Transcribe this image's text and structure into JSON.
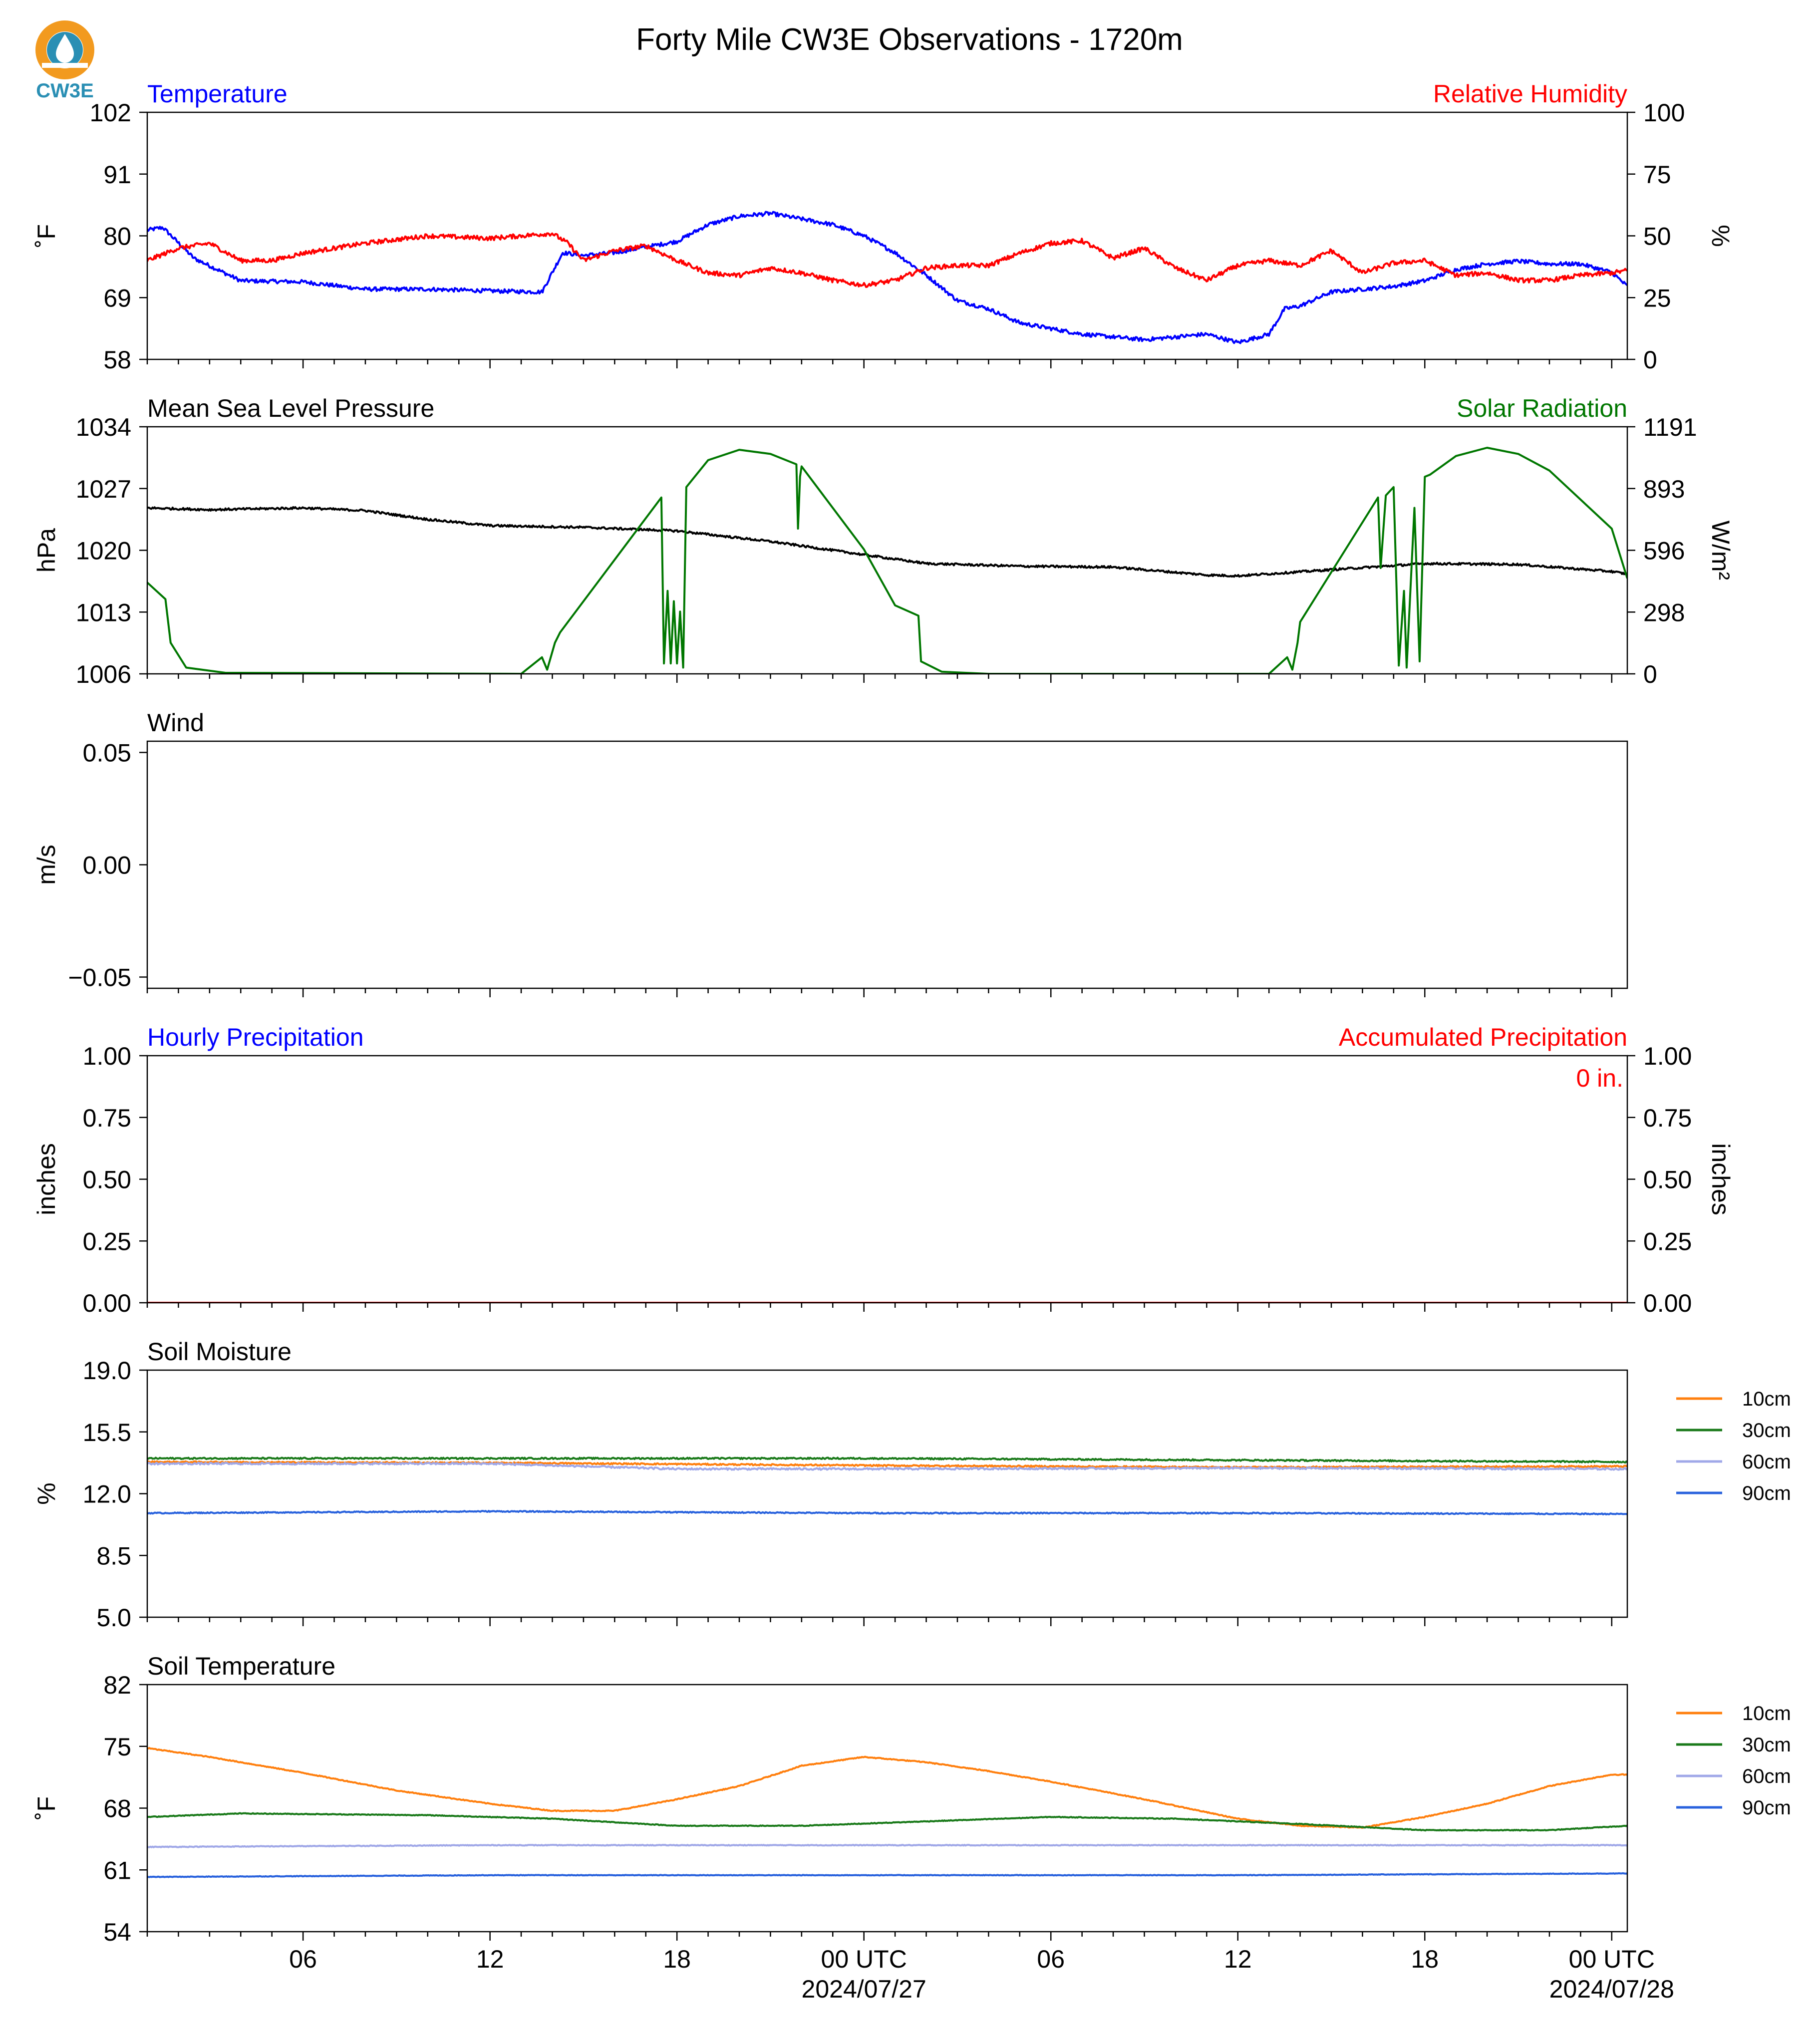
{
  "title": "Forty Mile CW3E Observations - 1720m",
  "logo": {
    "text": "CW3E",
    "color": "#2a8fb4",
    "ring_color": "#f29a1f"
  },
  "time_axis": {
    "x_range": [
      "2024-07-26T01:00",
      "2024-07-28T00:30"
    ],
    "tick_labels": [
      {
        "x": "2024-07-26T06:00",
        "lines": [
          "06"
        ]
      },
      {
        "x": "2024-07-26T12:00",
        "lines": [
          "12"
        ]
      },
      {
        "x": "2024-07-26T18:00",
        "lines": [
          "18"
        ]
      },
      {
        "x": "2024-07-27T00:00",
        "lines": [
          "00 UTC",
          "2024/07/27"
        ]
      },
      {
        "x": "2024-07-27T06:00",
        "lines": [
          "06"
        ]
      },
      {
        "x": "2024-07-27T12:00",
        "lines": [
          "12"
        ]
      },
      {
        "x": "2024-07-27T18:00",
        "lines": [
          "18"
        ]
      },
      {
        "x": "2024-07-28T00:00",
        "lines": [
          "00 UTC",
          "2024/07/28"
        ]
      }
    ]
  },
  "chart_data": [
    {
      "type": "line",
      "left_title": "Temperature",
      "left_title_color": "#0000ff",
      "right_title": "Relative Humidity",
      "right_title_color": "#ff0000",
      "ylabel": "˚F",
      "ylim": [
        58,
        102
      ],
      "yticks": [
        "58",
        "69",
        "80",
        "91",
        "102"
      ],
      "y2label": "%",
      "y2lim": [
        0,
        100
      ],
      "y2ticks": [
        "0",
        "25",
        "50",
        "75",
        "100"
      ],
      "series": [
        {
          "name": "Temperature",
          "axis": "left",
          "color": "#0000ff",
          "noise": 0.35,
          "x": [
            "2024-07-26T01:00",
            "2024-07-26T01:30",
            "2024-07-26T02:30",
            "2024-07-26T04:00",
            "2024-07-26T06:00",
            "2024-07-26T08:00",
            "2024-07-26T10:00",
            "2024-07-26T12:00",
            "2024-07-26T13:40",
            "2024-07-26T14:20",
            "2024-07-26T15:00",
            "2024-07-26T16:00",
            "2024-07-26T17:00",
            "2024-07-26T18:00",
            "2024-07-26T19:00",
            "2024-07-26T20:00",
            "2024-07-26T21:00",
            "2024-07-26T22:00",
            "2024-07-26T23:00",
            "2024-07-27T00:00",
            "2024-07-27T01:00",
            "2024-07-27T02:00",
            "2024-07-27T03:00",
            "2024-07-27T04:00",
            "2024-07-27T05:00",
            "2024-07-27T06:00",
            "2024-07-27T07:00",
            "2024-07-27T08:00",
            "2024-07-27T09:00",
            "2024-07-27T10:00",
            "2024-07-27T11:00",
            "2024-07-27T12:00",
            "2024-07-27T13:00",
            "2024-07-27T13:30",
            "2024-07-27T14:00",
            "2024-07-27T15:00",
            "2024-07-27T16:00",
            "2024-07-27T17:00",
            "2024-07-27T18:00",
            "2024-07-27T19:00",
            "2024-07-27T20:00",
            "2024-07-27T21:00",
            "2024-07-27T22:00",
            "2024-07-27T23:00",
            "2024-07-28T00:00",
            "2024-07-28T00:30"
          ],
          "values": [
            81,
            81.5,
            76,
            72,
            71.8,
            70.5,
            70.5,
            70.2,
            70,
            77,
            76.5,
            77,
            78,
            79,
            82,
            83.5,
            84,
            83,
            82,
            80,
            77,
            73,
            68.5,
            67,
            64.5,
            63.5,
            62.5,
            62,
            61.5,
            62,
            62.5,
            61,
            62.5,
            67,
            67.5,
            70,
            70.5,
            71,
            72,
            74,
            75,
            75.5,
            75,
            75,
            73.5,
            71
          ]
        },
        {
          "name": "Relative Humidity",
          "axis": "right",
          "color": "#ff0000",
          "noise": 0.9,
          "x": [
            "2024-07-26T01:00",
            "2024-07-26T02:00",
            "2024-07-26T03:00",
            "2024-07-26T04:00",
            "2024-07-26T05:00",
            "2024-07-26T06:00",
            "2024-07-26T08:00",
            "2024-07-26T10:00",
            "2024-07-26T12:00",
            "2024-07-26T13:00",
            "2024-07-26T14:00",
            "2024-07-26T14:30",
            "2024-07-26T15:00",
            "2024-07-26T16:00",
            "2024-07-26T17:00",
            "2024-07-26T18:00",
            "2024-07-26T19:00",
            "2024-07-26T20:00",
            "2024-07-26T21:00",
            "2024-07-26T22:00",
            "2024-07-26T23:00",
            "2024-07-27T00:00",
            "2024-07-27T01:00",
            "2024-07-27T02:00",
            "2024-07-27T03:00",
            "2024-07-27T04:00",
            "2024-07-27T05:00",
            "2024-07-27T06:00",
            "2024-07-27T07:00",
            "2024-07-27T08:00",
            "2024-07-27T09:00",
            "2024-07-27T10:00",
            "2024-07-27T11:00",
            "2024-07-27T12:00",
            "2024-07-27T13:00",
            "2024-07-27T14:00",
            "2024-07-27T15:00",
            "2024-07-27T16:00",
            "2024-07-27T17:00",
            "2024-07-27T18:00",
            "2024-07-27T19:00",
            "2024-07-27T20:00",
            "2024-07-27T21:00",
            "2024-07-27T22:00",
            "2024-07-27T23:00",
            "2024-07-28T00:00",
            "2024-07-28T00:30"
          ],
          "values": [
            40,
            45,
            47,
            40,
            40,
            43,
            47,
            50,
            49,
            50,
            51,
            47,
            40,
            44,
            46,
            40,
            35,
            34,
            37,
            35,
            32,
            30,
            32,
            37,
            38,
            38,
            43,
            47,
            48,
            41,
            45,
            37,
            32,
            38,
            40,
            38,
            44,
            35,
            39,
            40,
            34,
            35,
            32,
            32,
            34,
            35,
            36
          ]
        }
      ]
    },
    {
      "type": "line",
      "left_title": "Mean Sea Level Pressure",
      "left_title_color": "#000000",
      "right_title": "Solar Radiation",
      "right_title_color": "#007700",
      "ylabel": "hPa",
      "ylim": [
        1006,
        1034
      ],
      "yticks": [
        "1006",
        "1013",
        "1020",
        "1027",
        "1034"
      ],
      "y2label": "W/m²",
      "y2lim": [
        0,
        1191
      ],
      "y2ticks": [
        "0",
        "298",
        "596",
        "893",
        "1191"
      ],
      "series": [
        {
          "name": "Mean Sea Level Pressure",
          "axis": "left",
          "color": "#000000",
          "noise": 0.12,
          "x": [
            "2024-07-26T01:00",
            "2024-07-26T03:00",
            "2024-07-26T06:00",
            "2024-07-26T08:00",
            "2024-07-26T10:00",
            "2024-07-26T12:00",
            "2024-07-26T15:00",
            "2024-07-26T18:00",
            "2024-07-26T21:00",
            "2024-07-27T00:00",
            "2024-07-27T02:00",
            "2024-07-27T05:00",
            "2024-07-27T08:00",
            "2024-07-27T11:00",
            "2024-07-27T12:00",
            "2024-07-27T15:00",
            "2024-07-27T18:00",
            "2024-07-27T21:00",
            "2024-07-28T00:00",
            "2024-07-28T00:30"
          ],
          "values": [
            1024.8,
            1024.6,
            1024.8,
            1024.5,
            1023.5,
            1022.8,
            1022.6,
            1022.2,
            1021,
            1019.5,
            1018.5,
            1018.2,
            1018.1,
            1017.2,
            1017.1,
            1017.8,
            1018.5,
            1018.4,
            1017.6,
            1017.3
          ]
        },
        {
          "name": "Solar Radiation",
          "axis": "right",
          "color": "#007700",
          "noise": 0,
          "x": [
            "2024-07-26T01:00",
            "2024-07-26T01:35",
            "2024-07-26T01:45",
            "2024-07-26T02:15",
            "2024-07-26T03:30",
            "2024-07-26T13:00",
            "2024-07-26T13:40",
            "2024-07-26T13:50",
            "2024-07-26T14:05",
            "2024-07-26T14:15",
            "2024-07-26T17:30",
            "2024-07-26T17:35",
            "2024-07-26T17:42",
            "2024-07-26T17:48",
            "2024-07-26T17:54",
            "2024-07-26T18:00",
            "2024-07-26T18:06",
            "2024-07-26T18:12",
            "2024-07-26T18:18",
            "2024-07-26T19:00",
            "2024-07-26T20:00",
            "2024-07-26T21:00",
            "2024-07-26T21:50",
            "2024-07-26T21:53",
            "2024-07-26T21:57",
            "2024-07-26T22:00",
            "2024-07-27T00:00",
            "2024-07-27T01:00",
            "2024-07-27T01:45",
            "2024-07-27T01:50",
            "2024-07-27T02:30",
            "2024-07-27T04:00",
            "2024-07-27T13:00",
            "2024-07-27T13:35",
            "2024-07-27T13:45",
            "2024-07-27T13:55",
            "2024-07-27T14:00",
            "2024-07-27T16:30",
            "2024-07-27T16:35",
            "2024-07-27T16:45",
            "2024-07-27T17:00",
            "2024-07-27T17:10",
            "2024-07-27T17:20",
            "2024-07-27T17:25",
            "2024-07-27T17:40",
            "2024-07-27T17:50",
            "2024-07-27T18:00",
            "2024-07-27T18:10",
            "2024-07-27T19:00",
            "2024-07-27T20:00",
            "2024-07-27T21:00",
            "2024-07-27T22:00",
            "2024-07-28T00:00",
            "2024-07-28T00:30"
          ],
          "values": [
            440,
            360,
            150,
            30,
            5,
            0,
            80,
            20,
            150,
            200,
            850,
            50,
            400,
            50,
            350,
            50,
            300,
            30,
            900,
            1030,
            1080,
            1060,
            1010,
            700,
            950,
            1000,
            600,
            330,
            280,
            60,
            10,
            0,
            0,
            80,
            20,
            150,
            250,
            850,
            510,
            860,
            900,
            40,
            400,
            30,
            800,
            60,
            950,
            960,
            1050,
            1090,
            1060,
            980,
            700,
            460
          ]
        }
      ]
    },
    {
      "type": "line",
      "left_title": "Wind",
      "left_title_color": "#000000",
      "ylabel": "m/s",
      "ylim": [
        -0.055,
        0.055
      ],
      "yticks": [
        {
          "v": -0.05,
          "t": "−0.05"
        },
        {
          "v": 0,
          "t": "0.00"
        },
        {
          "v": 0.05,
          "t": "0.05"
        }
      ],
      "series": []
    },
    {
      "type": "line",
      "left_title": "Hourly Precipitation",
      "left_title_color": "#0000ff",
      "right_title": "Accumulated Precipitation",
      "right_title_color": "#ff0000",
      "annotation": "0 in.",
      "annotation_color": "#ff0000",
      "ylabel": "inches",
      "ylim": [
        0,
        1
      ],
      "yticks": [
        "0.00",
        "0.25",
        "0.50",
        "0.75",
        "1.00"
      ],
      "y2label": "inches",
      "y2lim": [
        0,
        1
      ],
      "y2ticks": [
        "0.00",
        "0.25",
        "0.50",
        "0.75",
        "1.00"
      ],
      "series": [
        {
          "name": "Hourly Precipitation",
          "axis": "left",
          "color": "#0000ff",
          "noise": 0,
          "x": [
            "2024-07-26T01:00",
            "2024-07-28T00:30"
          ],
          "values": [
            0,
            0
          ]
        },
        {
          "name": "Accumulated Precipitation",
          "axis": "right",
          "color": "#ff0000",
          "noise": 0,
          "x": [
            "2024-07-26T01:00",
            "2024-07-28T00:30"
          ],
          "values": [
            0,
            0
          ]
        }
      ]
    },
    {
      "type": "line",
      "left_title": "Soil Moisture",
      "left_title_color": "#000000",
      "ylabel": "%",
      "ylim": [
        5,
        19
      ],
      "yticks": [
        "5.0",
        "8.5",
        "12.0",
        "15.5",
        "19.0"
      ],
      "legend_position": "right",
      "series": [
        {
          "name": "10cm",
          "axis": "left",
          "color": "#ff7f0e",
          "noise": 0.04,
          "x": [
            "2024-07-26T01:00",
            "2024-07-26T12:00",
            "2024-07-27T00:00",
            "2024-07-27T12:00",
            "2024-07-28T00:30"
          ],
          "values": [
            13.8,
            13.75,
            13.6,
            13.5,
            13.55
          ]
        },
        {
          "name": "30cm",
          "axis": "left",
          "color": "#1a7a1a",
          "noise": 0.04,
          "x": [
            "2024-07-26T01:00",
            "2024-07-26T12:00",
            "2024-07-27T00:00",
            "2024-07-27T12:00",
            "2024-07-28T00:30"
          ],
          "values": [
            14.0,
            14.0,
            14.0,
            13.9,
            13.8
          ]
        },
        {
          "name": "60cm",
          "axis": "left",
          "color": "#a0a8e8",
          "noise": 0.05,
          "x": [
            "2024-07-26T01:00",
            "2024-07-26T12:00",
            "2024-07-26T18:00",
            "2024-07-27T00:00",
            "2024-07-27T12:00",
            "2024-07-28T00:30"
          ],
          "values": [
            13.7,
            13.7,
            13.4,
            13.4,
            13.45,
            13.4
          ]
        },
        {
          "name": "90cm",
          "axis": "left",
          "color": "#2962dd",
          "noise": 0.03,
          "x": [
            "2024-07-26T01:00",
            "2024-07-26T12:00",
            "2024-07-27T00:00",
            "2024-07-27T12:00",
            "2024-07-28T00:30"
          ],
          "values": [
            10.9,
            11.0,
            10.9,
            10.9,
            10.85
          ]
        }
      ]
    },
    {
      "type": "line",
      "left_title": "Soil Temperature",
      "left_title_color": "#000000",
      "ylabel": "˚F",
      "ylim": [
        54,
        82
      ],
      "yticks": [
        "54",
        "61",
        "68",
        "75",
        "82"
      ],
      "legend_position": "right",
      "series": [
        {
          "name": "10cm",
          "axis": "left",
          "color": "#ff7f0e",
          "noise": 0.05,
          "x": [
            "2024-07-26T01:00",
            "2024-07-26T03:00",
            "2024-07-26T06:00",
            "2024-07-26T09:00",
            "2024-07-26T12:00",
            "2024-07-26T14:00",
            "2024-07-26T16:00",
            "2024-07-26T18:00",
            "2024-07-26T20:00",
            "2024-07-26T22:00",
            "2024-07-27T00:00",
            "2024-07-27T02:00",
            "2024-07-27T04:00",
            "2024-07-27T06:00",
            "2024-07-27T09:00",
            "2024-07-27T12:00",
            "2024-07-27T14:00",
            "2024-07-27T16:00",
            "2024-07-27T18:00",
            "2024-07-27T20:00",
            "2024-07-27T22:00",
            "2024-07-28T00:00",
            "2024-07-28T00:30"
          ],
          "values": [
            74.8,
            73.8,
            72,
            70,
            68.5,
            67.7,
            67.7,
            69,
            70.5,
            72.8,
            73.8,
            73.2,
            72.2,
            71,
            69,
            66.8,
            66,
            65.8,
            67,
            68.5,
            70.5,
            71.8,
            71.8
          ]
        },
        {
          "name": "30cm",
          "axis": "left",
          "color": "#1a7a1a",
          "noise": 0.04,
          "x": [
            "2024-07-26T01:00",
            "2024-07-26T04:00",
            "2024-07-26T10:00",
            "2024-07-26T14:00",
            "2024-07-26T18:00",
            "2024-07-26T22:00",
            "2024-07-27T02:00",
            "2024-07-27T06:00",
            "2024-07-27T10:00",
            "2024-07-27T14:00",
            "2024-07-27T18:00",
            "2024-07-27T22:00",
            "2024-07-28T00:30"
          ],
          "values": [
            67,
            67.4,
            67.2,
            66.8,
            66,
            66,
            66.5,
            67,
            66.8,
            66.2,
            65.5,
            65.5,
            66
          ]
        },
        {
          "name": "60cm",
          "axis": "left",
          "color": "#a0a8e8",
          "noise": 0.04,
          "x": [
            "2024-07-26T01:00",
            "2024-07-26T12:00",
            "2024-07-27T00:00",
            "2024-07-27T12:00",
            "2024-07-28T00:30"
          ],
          "values": [
            63.6,
            63.8,
            63.8,
            63.8,
            63.8
          ]
        },
        {
          "name": "90cm",
          "axis": "left",
          "color": "#2962dd",
          "noise": 0.03,
          "x": [
            "2024-07-26T01:00",
            "2024-07-26T12:00",
            "2024-07-27T00:00",
            "2024-07-27T12:00",
            "2024-07-27T18:00",
            "2024-07-28T00:30"
          ],
          "values": [
            60.2,
            60.4,
            60.4,
            60.4,
            60.5,
            60.6
          ]
        }
      ]
    }
  ]
}
